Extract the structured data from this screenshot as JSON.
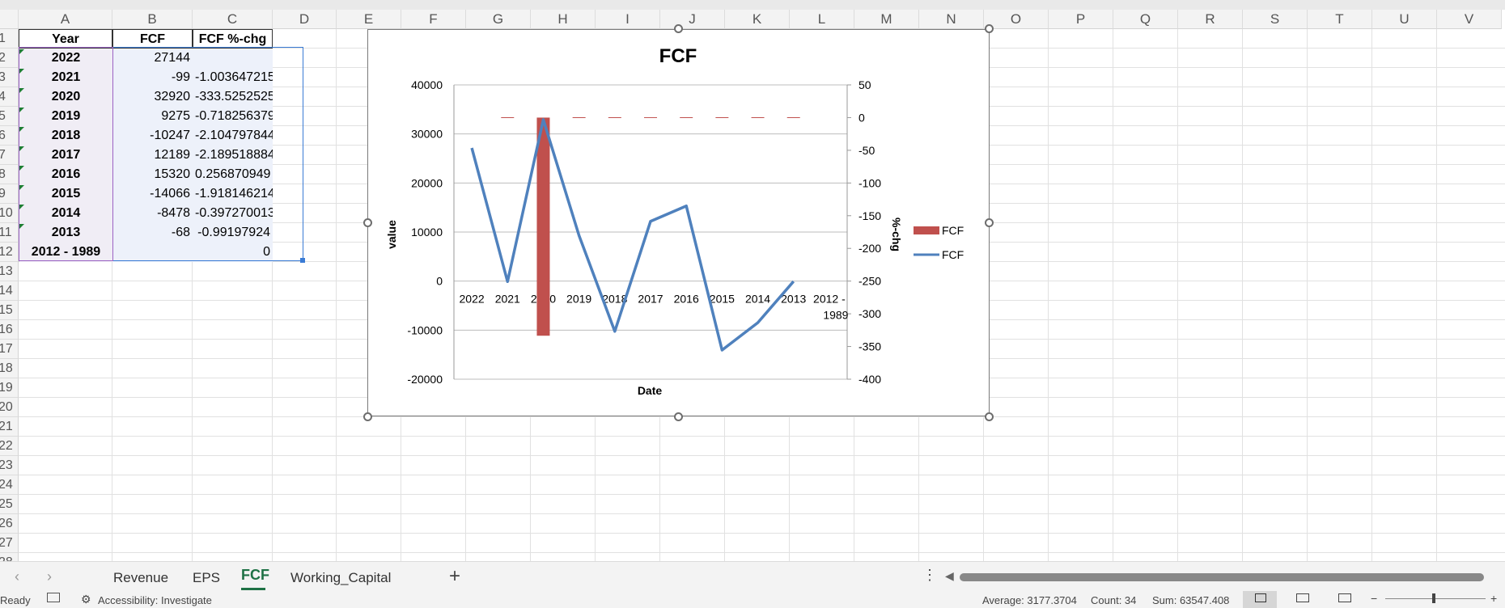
{
  "columns": [
    "A",
    "B",
    "C",
    "D",
    "E",
    "F",
    "G",
    "H",
    "I",
    "J",
    "K",
    "L",
    "M",
    "N",
    "O",
    "P",
    "Q",
    "R",
    "S",
    "T",
    "U",
    "V"
  ],
  "row_numbers": [
    "1",
    "2",
    "3",
    "4",
    "5",
    "6",
    "7",
    "8",
    "9",
    "10",
    "11",
    "12",
    "13",
    "14",
    "15",
    "16",
    "17",
    "18",
    "19",
    "20",
    "21",
    "22",
    "23",
    "24",
    "25",
    "26",
    "27",
    "28"
  ],
  "table": {
    "headers": [
      "Year",
      "FCF",
      "FCF %-chg"
    ],
    "rows": [
      {
        "year": "2022",
        "fcf": "27144",
        "chg": ""
      },
      {
        "year": "2021",
        "fcf": "-99",
        "chg": "-1.003647215"
      },
      {
        "year": "2020",
        "fcf": "32920",
        "chg": "-333.5252525"
      },
      {
        "year": "2019",
        "fcf": "9275",
        "chg": "-0.718256379"
      },
      {
        "year": "2018",
        "fcf": "-10247",
        "chg": "-2.104797844"
      },
      {
        "year": "2017",
        "fcf": "12189",
        "chg": "-2.189518884"
      },
      {
        "year": "2016",
        "fcf": "15320",
        "chg": "0.256870949"
      },
      {
        "year": "2015",
        "fcf": "-14066",
        "chg": "-1.918146214"
      },
      {
        "year": "2014",
        "fcf": "-8478",
        "chg": "-0.397270013"
      },
      {
        "year": "2013",
        "fcf": "-68",
        "chg": "-0.99197924"
      },
      {
        "year": "2012 - 1989",
        "fcf": "",
        "chg": "0"
      }
    ]
  },
  "chart_data": {
    "type": "bar",
    "title": "FCF",
    "xlabel": "Date",
    "ylabel": "value",
    "y2label": "%-chg",
    "categories": [
      "2022",
      "2021",
      "2020",
      "2019",
      "2018",
      "2017",
      "2016",
      "2015",
      "2014",
      "2013",
      "2012 - 1989"
    ],
    "category_lines": [
      [
        "2022"
      ],
      [
        "2021"
      ],
      [
        "2020"
      ],
      [
        "2019"
      ],
      [
        "2018"
      ],
      [
        "2017"
      ],
      [
        "2016"
      ],
      [
        "2015"
      ],
      [
        "2014"
      ],
      [
        "2013"
      ],
      [
        "2012 -",
        "1989"
      ]
    ],
    "ylim": [
      -20000,
      40000
    ],
    "yticks": [
      "40000",
      "30000",
      "20000",
      "10000",
      "0",
      "-10000",
      "-20000"
    ],
    "y2lim": [
      -400,
      50
    ],
    "y2ticks": [
      "50",
      "0",
      "-50",
      "-100",
      "-150",
      "-200",
      "-250",
      "-300",
      "-350",
      "-400"
    ],
    "series": [
      {
        "name": "FCF",
        "kind": "bar",
        "axis": "secondary",
        "values": [
          null,
          null,
          -333.5252525,
          null,
          null,
          null,
          null,
          null,
          null,
          null,
          null
        ],
        "color": "#c0504d"
      },
      {
        "name": "FCF",
        "kind": "line",
        "axis": "primary",
        "values": [
          27144,
          -99,
          32920,
          9275,
          -10247,
          12189,
          15320,
          -14066,
          -8478,
          -68,
          null
        ],
        "color": "#4f81bd"
      }
    ],
    "legend": [
      "FCF",
      "FCF"
    ],
    "legend_position": "right"
  },
  "sheet_tabs": [
    "Revenue",
    "EPS",
    "FCF",
    "Working_Capital"
  ],
  "active_tab": "FCF",
  "add_sheet_label": "+",
  "status": {
    "ready": "Ready",
    "accessibility": "Accessibility: Investigate",
    "average": "Average: 3177.3704",
    "count": "Count: 34",
    "sum": "Sum: 63547.408"
  }
}
